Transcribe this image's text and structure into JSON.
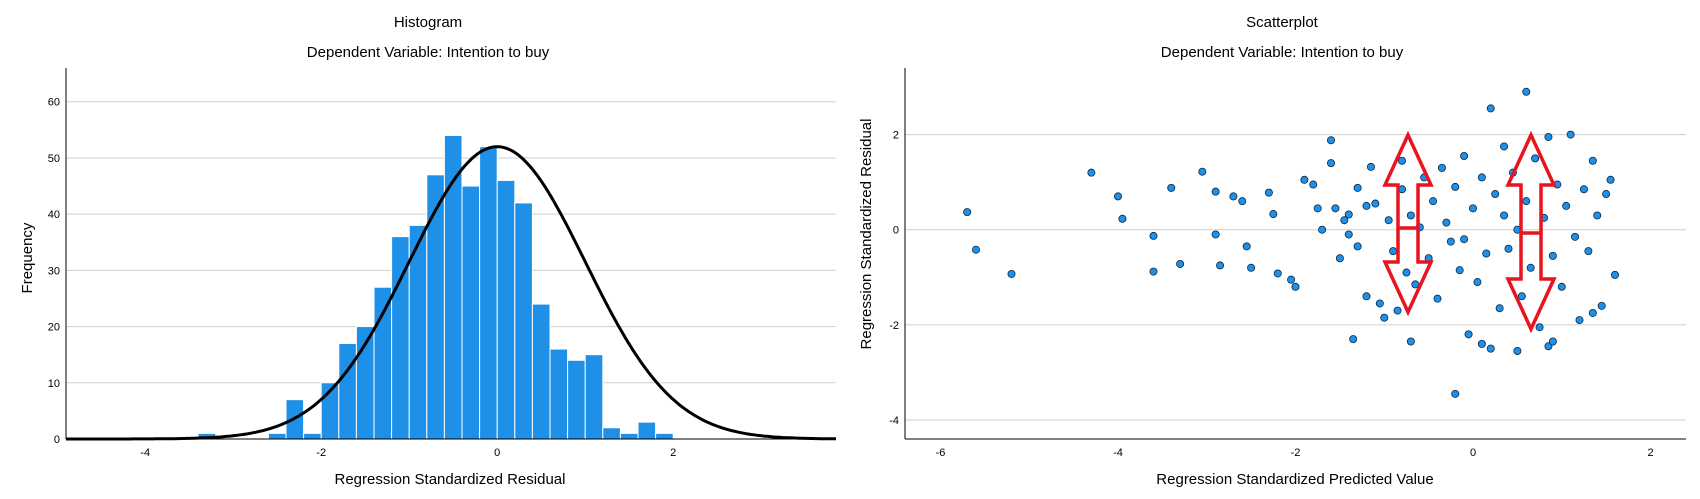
{
  "colors": {
    "bar": "#1e90e8",
    "point": "#1e90e8",
    "curve": "#000000",
    "arrow": "#e8141e",
    "grid": "#cfcfcf"
  },
  "chart_data": [
    {
      "type": "bar",
      "title": "Histogram",
      "subtitle": "Dependent Variable: Intention to buy",
      "xlabel": "Regression Standardized Residual",
      "ylabel": "Frequency",
      "xlim": [
        -4.9,
        3.85
      ],
      "ylim": [
        0,
        66
      ],
      "xticks": [
        -4,
        -2,
        0,
        2
      ],
      "yticks": [
        0,
        10,
        20,
        30,
        40,
        50,
        60
      ],
      "grid": true,
      "bin_width": 0.2,
      "bins": [
        {
          "x": -3.4,
          "value": 1
        },
        {
          "x": -2.6,
          "value": 1
        },
        {
          "x": -2.4,
          "value": 7
        },
        {
          "x": -2.2,
          "value": 1
        },
        {
          "x": -2.0,
          "value": 10
        },
        {
          "x": -1.8,
          "value": 17
        },
        {
          "x": -1.6,
          "value": 20
        },
        {
          "x": -1.4,
          "value": 27
        },
        {
          "x": -1.2,
          "value": 36
        },
        {
          "x": -1.0,
          "value": 38
        },
        {
          "x": -0.8,
          "value": 47
        },
        {
          "x": -0.6,
          "value": 54
        },
        {
          "x": -0.4,
          "value": 45
        },
        {
          "x": -0.2,
          "value": 52
        },
        {
          "x": 0.0,
          "value": 46
        },
        {
          "x": 0.2,
          "value": 42
        },
        {
          "x": 0.4,
          "value": 24
        },
        {
          "x": 0.6,
          "value": 16
        },
        {
          "x": 0.8,
          "value": 14
        },
        {
          "x": 1.0,
          "value": 15
        },
        {
          "x": 1.2,
          "value": 2
        },
        {
          "x": 1.4,
          "value": 1
        },
        {
          "x": 1.6,
          "value": 3
        },
        {
          "x": 1.8,
          "value": 1
        }
      ],
      "normal_curve": {
        "mean": 0,
        "sd": 1,
        "peak": 52
      }
    },
    {
      "type": "scatter",
      "title": "Scatterplot",
      "subtitle": "Dependent Variable: Intention to buy",
      "xlabel": "Regression Standardized Predicted Value",
      "ylabel": "Regression Standardized Residual",
      "xlim": [
        -6.4,
        2.4
      ],
      "ylim": [
        -4.4,
        3.4
      ],
      "xticks": [
        -6,
        -4,
        -2,
        0,
        2
      ],
      "yticks": [
        -4,
        -2,
        0,
        2
      ],
      "grid": true,
      "points": [
        [
          -5.7,
          0.37
        ],
        [
          -5.6,
          -0.42
        ],
        [
          -5.2,
          -0.93
        ],
        [
          -4.3,
          1.2
        ],
        [
          -4.0,
          0.7
        ],
        [
          -3.95,
          0.23
        ],
        [
          -3.6,
          -0.13
        ],
        [
          -3.6,
          -0.88
        ],
        [
          -3.4,
          0.88
        ],
        [
          -3.3,
          -0.72
        ],
        [
          -3.05,
          1.22
        ],
        [
          -2.9,
          0.8
        ],
        [
          -2.9,
          -0.1
        ],
        [
          -2.85,
          -0.75
        ],
        [
          -2.7,
          0.7
        ],
        [
          -2.6,
          0.6
        ],
        [
          -2.55,
          -0.35
        ],
        [
          -2.5,
          -0.8
        ],
        [
          -2.3,
          0.78
        ],
        [
          -2.25,
          0.33
        ],
        [
          -2.2,
          -0.92
        ],
        [
          -2.05,
          -1.05
        ],
        [
          -2.0,
          -1.2
        ],
        [
          -1.9,
          1.05
        ],
        [
          -1.8,
          0.95
        ],
        [
          -1.75,
          0.45
        ],
        [
          -1.7,
          0.0
        ],
        [
          -1.6,
          1.4
        ],
        [
          -1.6,
          1.88
        ],
        [
          -1.55,
          0.45
        ],
        [
          -1.5,
          -0.6
        ],
        [
          -1.45,
          0.2
        ],
        [
          -1.4,
          0.32
        ],
        [
          -1.4,
          -0.1
        ],
        [
          -1.35,
          -2.3
        ],
        [
          -1.3,
          0.88
        ],
        [
          -1.3,
          -0.35
        ],
        [
          -1.2,
          0.5
        ],
        [
          -1.2,
          -1.4
        ],
        [
          -1.15,
          1.32
        ],
        [
          -1.1,
          0.55
        ],
        [
          -1.05,
          -1.55
        ],
        [
          -1.0,
          -1.85
        ],
        [
          -0.95,
          0.2
        ],
        [
          -0.9,
          -0.45
        ],
        [
          -0.85,
          -1.7
        ],
        [
          -0.8,
          0.85
        ],
        [
          -0.8,
          1.45
        ],
        [
          -0.75,
          -0.9
        ],
        [
          -0.7,
          0.3
        ],
        [
          -0.7,
          -2.35
        ],
        [
          -0.65,
          -1.15
        ],
        [
          -0.6,
          0.05
        ],
        [
          -0.55,
          1.1
        ],
        [
          -0.5,
          -0.6
        ],
        [
          -0.45,
          0.6
        ],
        [
          -0.4,
          -1.45
        ],
        [
          -0.35,
          1.3
        ],
        [
          -0.3,
          0.15
        ],
        [
          -0.25,
          -0.25
        ],
        [
          -0.2,
          0.9
        ],
        [
          -0.15,
          -0.85
        ],
        [
          -0.1,
          1.55
        ],
        [
          -0.1,
          -0.2
        ],
        [
          -0.05,
          -2.2
        ],
        [
          0.0,
          0.45
        ],
        [
          0.05,
          -1.1
        ],
        [
          0.1,
          1.1
        ],
        [
          0.15,
          -0.5
        ],
        [
          0.2,
          2.55
        ],
        [
          0.2,
          -2.5
        ],
        [
          0.25,
          0.75
        ],
        [
          0.3,
          -1.65
        ],
        [
          0.35,
          0.3
        ],
        [
          0.35,
          1.75
        ],
        [
          0.4,
          -0.4
        ],
        [
          0.45,
          1.2
        ],
        [
          0.5,
          0.0
        ],
        [
          0.55,
          -1.4
        ],
        [
          0.6,
          2.9
        ],
        [
          0.6,
          0.6
        ],
        [
          0.65,
          -0.8
        ],
        [
          0.7,
          1.5
        ],
        [
          0.75,
          -2.05
        ],
        [
          0.8,
          0.25
        ],
        [
          0.85,
          1.95
        ],
        [
          0.9,
          -0.55
        ],
        [
          0.95,
          0.95
        ],
        [
          1.0,
          -1.2
        ],
        [
          1.05,
          0.5
        ],
        [
          1.1,
          2.0
        ],
        [
          1.15,
          -0.15
        ],
        [
          1.2,
          -1.9
        ],
        [
          1.25,
          0.85
        ],
        [
          1.3,
          -0.45
        ],
        [
          1.35,
          1.45
        ],
        [
          1.4,
          0.3
        ],
        [
          1.45,
          -1.6
        ],
        [
          1.5,
          0.75
        ],
        [
          1.55,
          1.05
        ],
        [
          1.6,
          -0.95
        ],
        [
          1.35,
          -1.75
        ],
        [
          -0.2,
          -3.45
        ],
        [
          0.1,
          -2.4
        ],
        [
          0.5,
          -2.55
        ],
        [
          0.85,
          -2.45
        ],
        [
          0.9,
          -2.35
        ]
      ]
    }
  ]
}
